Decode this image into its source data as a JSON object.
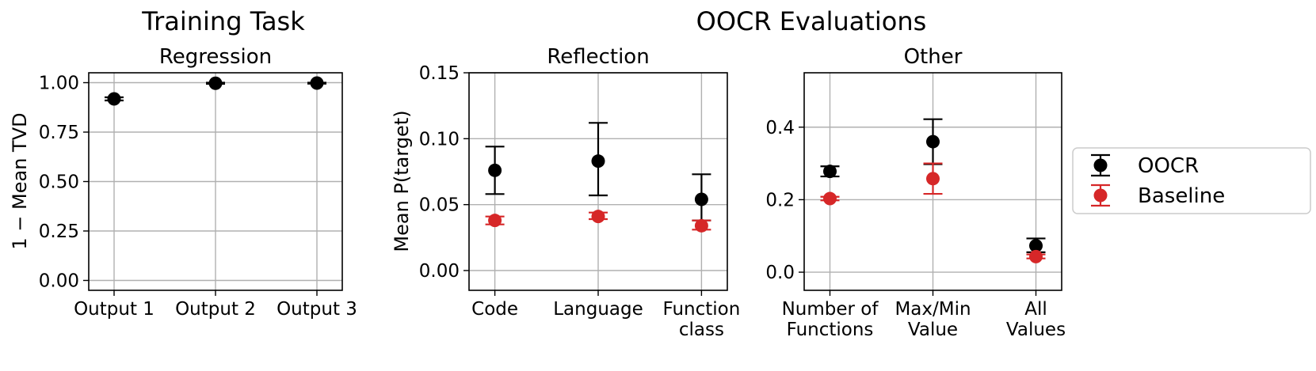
{
  "headers": {
    "training": "Training Task",
    "oocr": "OOCR Evaluations"
  },
  "colors": {
    "ocr": "#000000",
    "baseline": "#d62728",
    "grid": "#b0b0b0"
  },
  "legend": {
    "placement": "right",
    "items": [
      {
        "label": "OOCR",
        "color": "#000000"
      },
      {
        "label": "Baseline",
        "color": "#d62728"
      }
    ]
  },
  "chart_data": [
    {
      "type": "scatter",
      "title": "Regression",
      "xlabel": "",
      "ylabel": "1 −  Mean TVD",
      "categories": [
        "Output 1",
        "Output 2",
        "Output 3"
      ],
      "ylim": [
        -0.05,
        1.05
      ],
      "yticks": [
        "0.00",
        "0.25",
        "0.50",
        "0.75",
        "1.00"
      ],
      "yticks_values": [
        0.0,
        0.25,
        0.5,
        0.75,
        1.0
      ],
      "grid": true,
      "series": [
        {
          "name": "OOCR",
          "values": [
            0.918,
            0.997,
            0.998
          ],
          "err_low": [
            0.91,
            0.994,
            0.995
          ],
          "err_high": [
            0.926,
            1.0,
            1.0
          ]
        }
      ]
    },
    {
      "type": "scatter",
      "title": "Reflection",
      "xlabel": "",
      "ylabel": "Mean P(target)",
      "categories": [
        "Code",
        "Language",
        "Function\nclass"
      ],
      "ylim": [
        -0.015,
        0.15
      ],
      "yticks": [
        "0.00",
        "0.05",
        "0.10",
        "0.15"
      ],
      "yticks_values": [
        0.0,
        0.05,
        0.1,
        0.15
      ],
      "grid": true,
      "series": [
        {
          "name": "OOCR",
          "values": [
            0.076,
            0.083,
            0.054
          ],
          "err_low": [
            0.058,
            0.057,
            0.038
          ],
          "err_high": [
            0.094,
            0.112,
            0.073
          ]
        },
        {
          "name": "Baseline",
          "values": [
            0.038,
            0.041,
            0.034
          ],
          "err_low": [
            0.035,
            0.039,
            0.031
          ],
          "err_high": [
            0.041,
            0.044,
            0.038
          ]
        }
      ]
    },
    {
      "type": "scatter",
      "title": "Other",
      "xlabel": "",
      "ylabel": "",
      "categories": [
        "Number of\nFunctions",
        "Max/Min\nValue",
        "All\nValues"
      ],
      "ylim": [
        -0.05,
        0.55
      ],
      "yticks": [
        "0.0",
        "0.2",
        "0.4"
      ],
      "yticks_values": [
        0.0,
        0.2,
        0.4
      ],
      "grid": true,
      "series": [
        {
          "name": "OOCR",
          "values": [
            0.278,
            0.36,
            0.073
          ],
          "err_low": [
            0.264,
            0.298,
            0.055
          ],
          "err_high": [
            0.292,
            0.422,
            0.093
          ]
        },
        {
          "name": "Baseline",
          "values": [
            0.203,
            0.258,
            0.043
          ],
          "err_low": [
            0.198,
            0.216,
            0.038
          ],
          "err_high": [
            0.208,
            0.3,
            0.049
          ]
        }
      ]
    }
  ]
}
